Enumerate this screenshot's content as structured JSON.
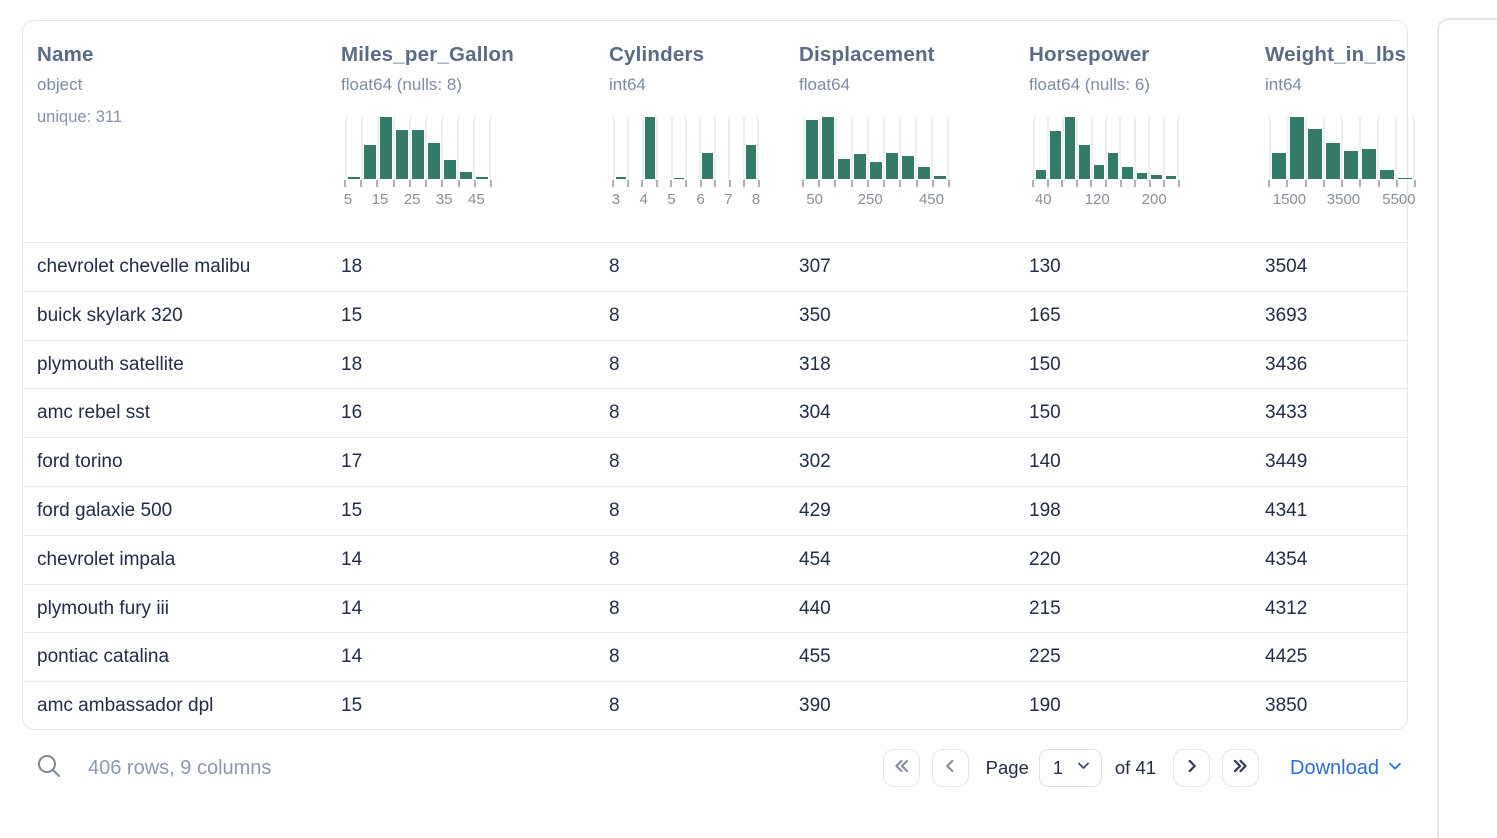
{
  "table": {
    "columns": [
      {
        "name": "Name",
        "dtype": "object",
        "stats": "unique: 311"
      },
      {
        "name": "Miles_per_Gallon",
        "dtype": "float64 (nulls: 8)",
        "histogram": {
          "type": "bar",
          "bar_heights_pct": [
            3,
            55,
            100,
            79,
            79,
            58,
            30,
            11,
            3
          ],
          "tick_labels": [
            {
              "text": "5",
              "pos": 0.02
            },
            {
              "text": "15",
              "pos": 0.24
            },
            {
              "text": "25",
              "pos": 0.46
            },
            {
              "text": "35",
              "pos": 0.68
            },
            {
              "text": "45",
              "pos": 0.9
            }
          ]
        }
      },
      {
        "name": "Cylinders",
        "dtype": "int64",
        "histogram": {
          "type": "bar",
          "bar_heights_pct": [
            4,
            0,
            100,
            0,
            2,
            0,
            42,
            0,
            0,
            55
          ],
          "tick_labels": [
            {
              "text": "3",
              "pos": 0.02
            },
            {
              "text": "4",
              "pos": 0.21
            },
            {
              "text": "5",
              "pos": 0.4
            },
            {
              "text": "6",
              "pos": 0.6
            },
            {
              "text": "7",
              "pos": 0.79
            },
            {
              "text": "8",
              "pos": 0.98
            }
          ]
        }
      },
      {
        "name": "Displacement",
        "dtype": "float64",
        "histogram": {
          "type": "bar",
          "bar_heights_pct": [
            95,
            100,
            33,
            40,
            28,
            42,
            37,
            20,
            5
          ],
          "tick_labels": [
            {
              "text": "50",
              "pos": 0.08
            },
            {
              "text": "250",
              "pos": 0.46
            },
            {
              "text": "450",
              "pos": 0.88
            }
          ]
        }
      },
      {
        "name": "Horsepower",
        "dtype": "float64 (nulls: 6)",
        "histogram": {
          "type": "bar",
          "bar_heights_pct": [
            15,
            78,
            100,
            55,
            22,
            42,
            20,
            10,
            6,
            5
          ],
          "tick_labels": [
            {
              "text": "40",
              "pos": 0.07
            },
            {
              "text": "120",
              "pos": 0.44
            },
            {
              "text": "200",
              "pos": 0.83
            }
          ]
        }
      },
      {
        "name": "Weight_in_lbs",
        "dtype": "int64",
        "histogram": {
          "type": "bar",
          "bar_heights_pct": [
            42,
            100,
            80,
            58,
            45,
            48,
            15,
            2
          ],
          "tick_labels": [
            {
              "text": "1500",
              "pos": 0.14
            },
            {
              "text": "3500",
              "pos": 0.51
            },
            {
              "text": "5500",
              "pos": 0.89
            }
          ]
        }
      }
    ],
    "rows": [
      [
        "chevrolet chevelle malibu",
        "18",
        "8",
        "307",
        "130",
        "3504"
      ],
      [
        "buick skylark 320",
        "15",
        "8",
        "350",
        "165",
        "3693"
      ],
      [
        "plymouth satellite",
        "18",
        "8",
        "318",
        "150",
        "3436"
      ],
      [
        "amc rebel sst",
        "16",
        "8",
        "304",
        "150",
        "3433"
      ],
      [
        "ford torino",
        "17",
        "8",
        "302",
        "140",
        "3449"
      ],
      [
        "ford galaxie 500",
        "15",
        "8",
        "429",
        "198",
        "4341"
      ],
      [
        "chevrolet impala",
        "14",
        "8",
        "454",
        "220",
        "4354"
      ],
      [
        "plymouth fury iii",
        "14",
        "8",
        "440",
        "215",
        "4312"
      ],
      [
        "pontiac catalina",
        "14",
        "8",
        "455",
        "225",
        "4425"
      ],
      [
        "amc ambassador dpl",
        "15",
        "8",
        "390",
        "190",
        "3850"
      ]
    ]
  },
  "footer": {
    "summary": "406 rows, 9 columns",
    "pagination": {
      "page_label": "Page",
      "current_page": "1",
      "total_label": "of 41"
    },
    "download_label": "Download"
  },
  "colors": {
    "histogram_bar": "#337a68",
    "link_blue": "#2a6fdb",
    "header_text": "#5b6b85",
    "cell_text": "#222d45",
    "muted_text": "#8d99ab"
  }
}
